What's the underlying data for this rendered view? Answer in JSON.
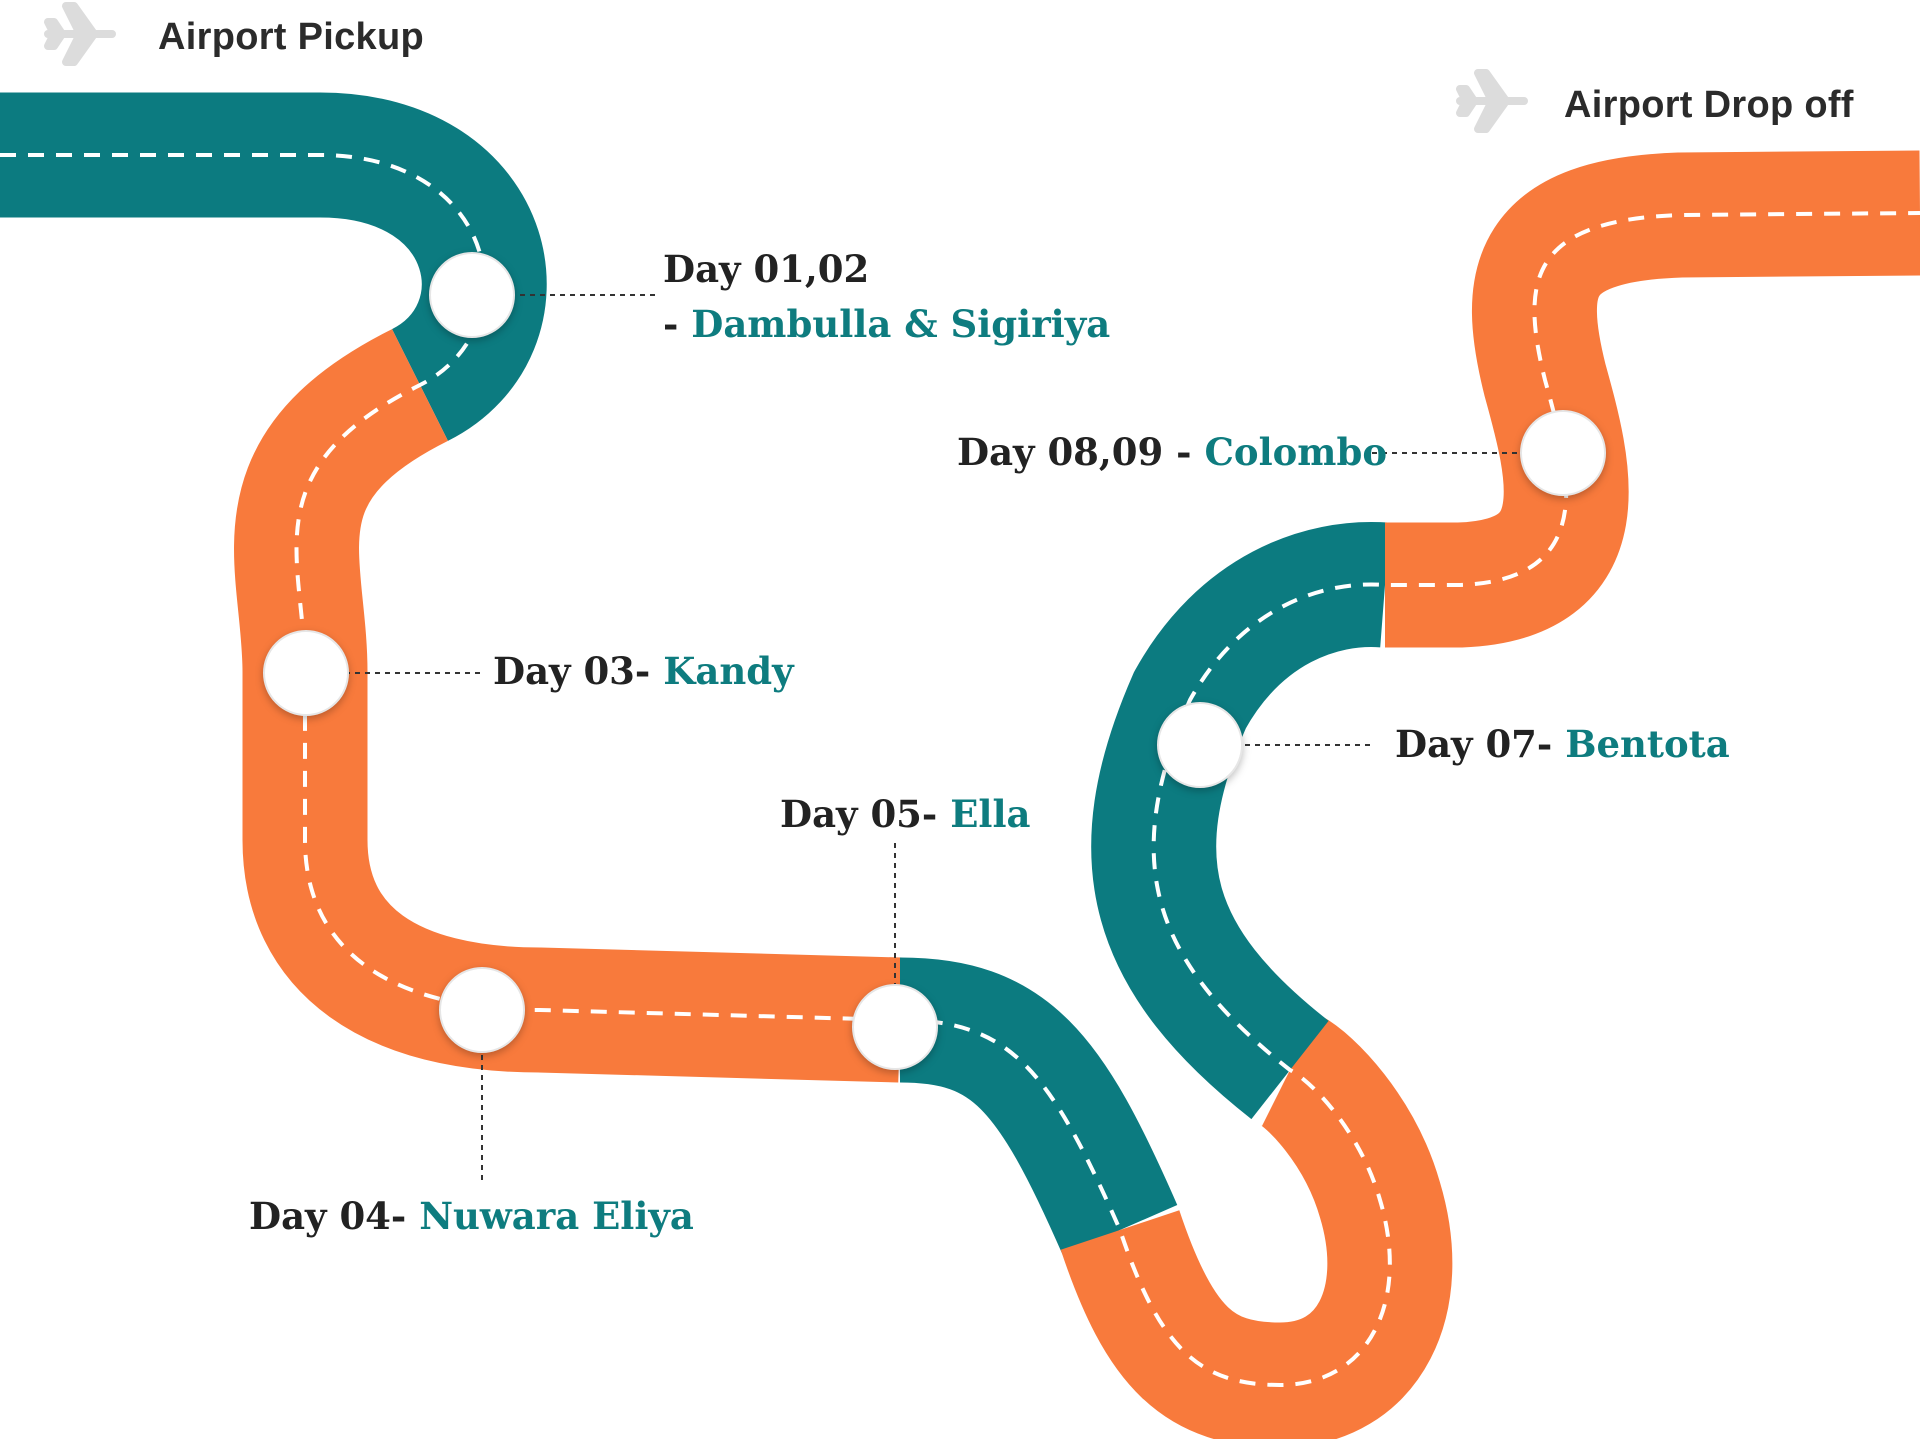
{
  "airport": {
    "pickup_label": "Airport Pickup",
    "dropoff_label": "Airport Drop off",
    "icon": "airplane-icon"
  },
  "colors": {
    "teal": "#0c7b80",
    "orange": "#f87a3c",
    "dash": "#ffffff",
    "place_text": "#0e7c7f",
    "day_text": "#222222"
  },
  "stops": [
    {
      "day": "Day 01,02",
      "place": "Dambulla & Sigiriya",
      "line1": "Day 01,02",
      "line2_prefix": "- "
    },
    {
      "day": "Day 03-",
      "place": "Kandy"
    },
    {
      "day": "Day 04-",
      "place": "Nuwara Eliya"
    },
    {
      "day": "Day 05-",
      "place": "Ella"
    },
    {
      "day": "Day 07-",
      "place": "Bentota"
    },
    {
      "day": "Day 08,09 -",
      "place": "Colombo"
    }
  ]
}
